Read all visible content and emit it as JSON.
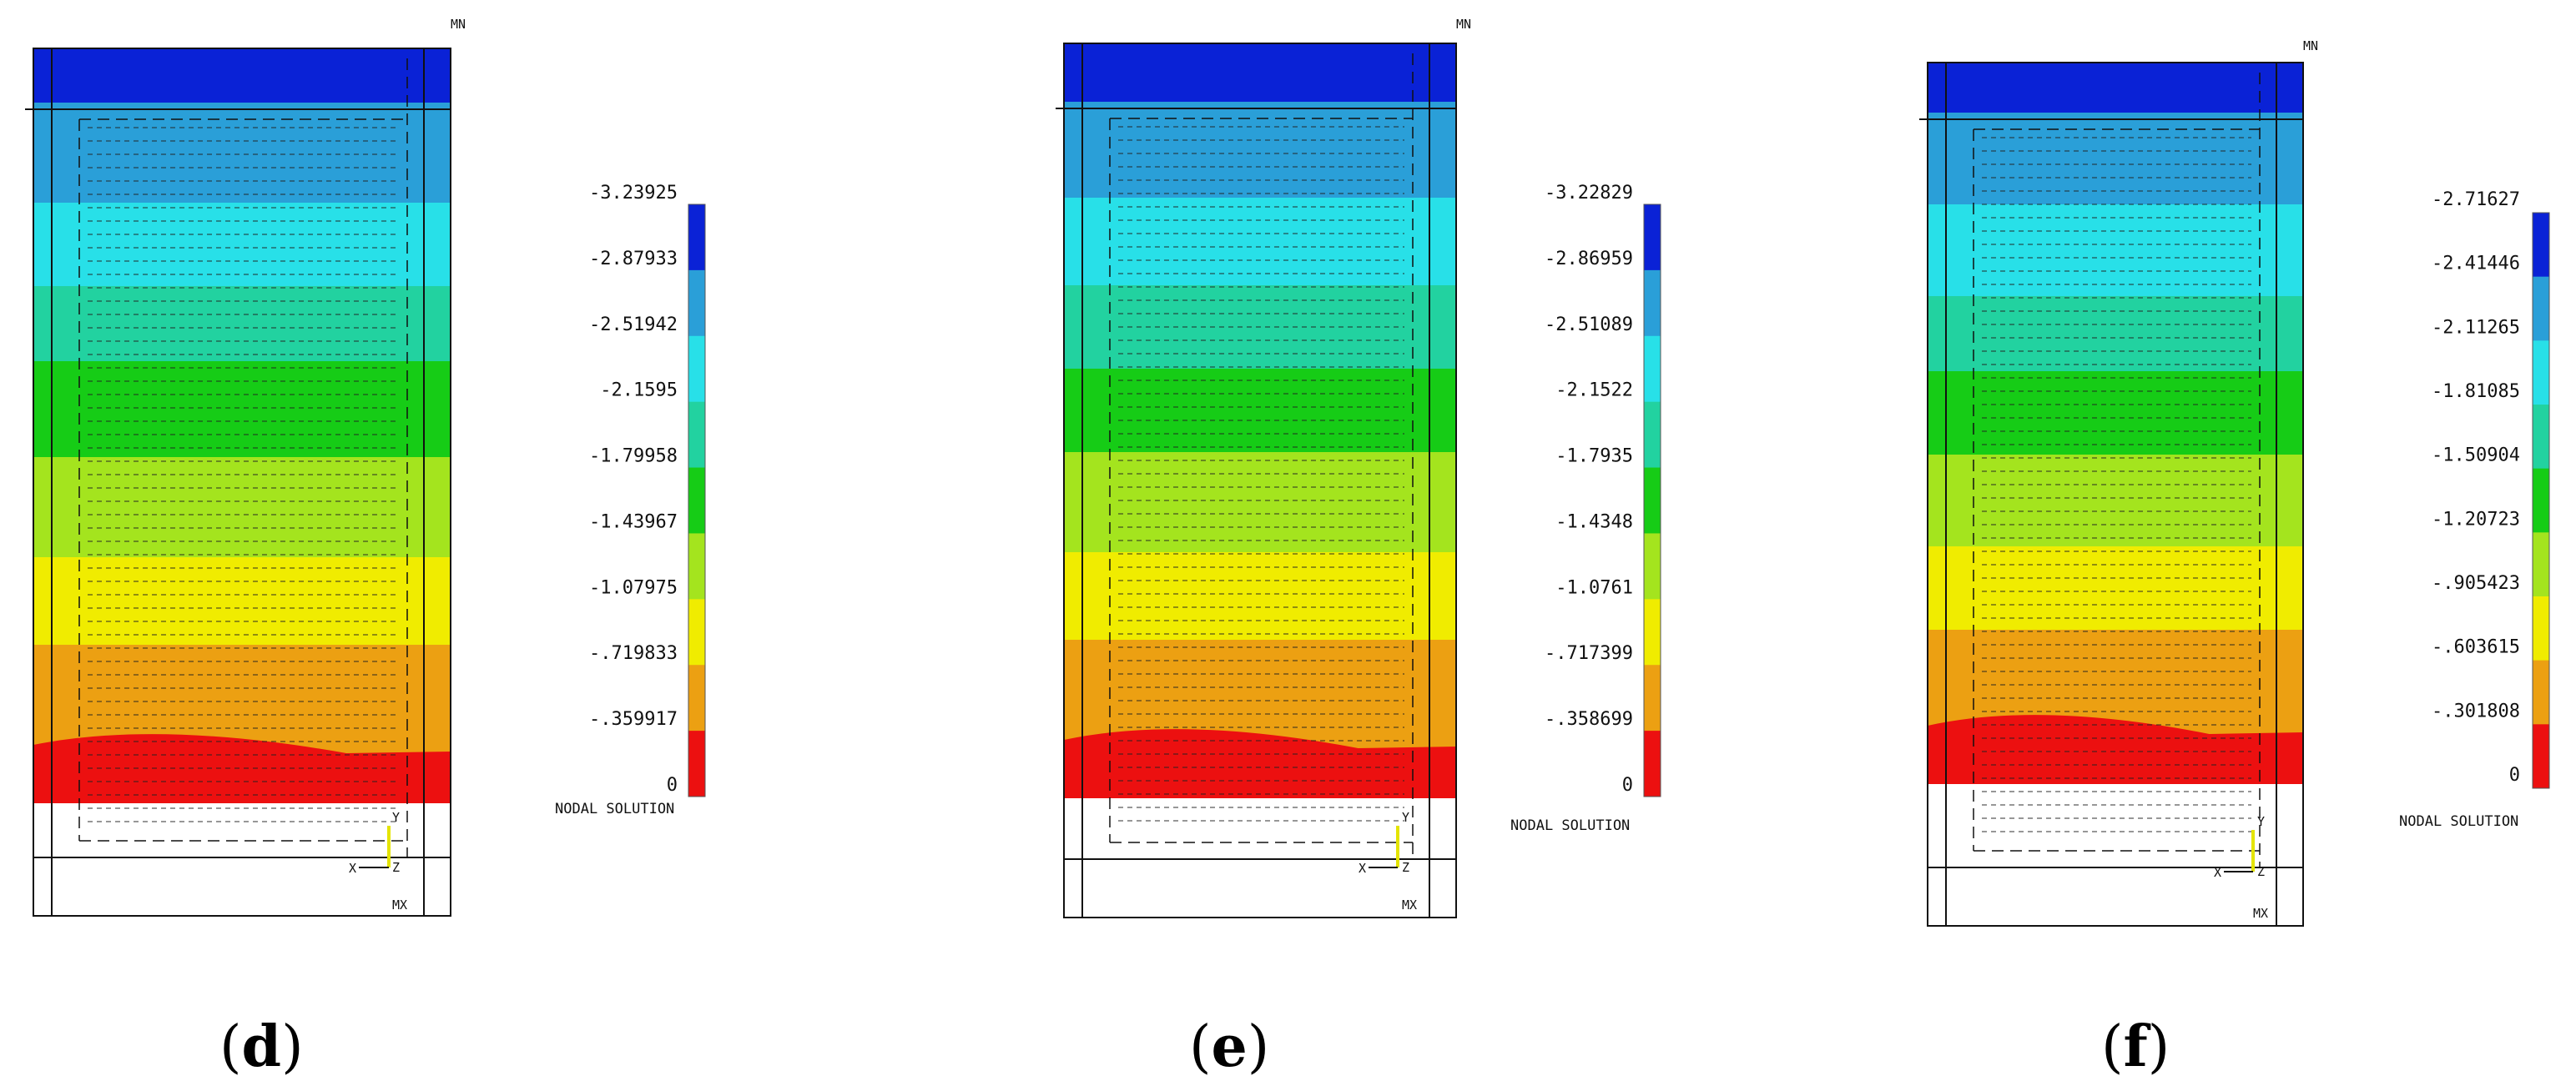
{
  "colors": {
    "bands_top_to_bottom": [
      "#0a22d6",
      "#2a9fd8",
      "#28e0e8",
      "#22d2a0",
      "#16cc16",
      "#a4e41e",
      "#f0ec00",
      "#eca012",
      "#ec1010"
    ]
  },
  "legend_title": "NODAL SOLUTION",
  "panels": [
    {
      "caption_open": "(",
      "caption_letter": "d",
      "caption_close": ")",
      "max_marker": "MX",
      "min_marker": "MN",
      "axis_y": "Y",
      "axis_x": "X",
      "axis_z": "Z",
      "legend_values": [
        "-3.23925",
        "-2.87933",
        "-2.51942",
        "-2.1595",
        "-1.79958",
        "-1.43967",
        "-1.07975",
        "-.719833",
        "-.359917",
        "0"
      ]
    },
    {
      "caption_open": "(",
      "caption_letter": "e",
      "caption_close": ")",
      "max_marker": "MX",
      "min_marker": "MN",
      "axis_y": "Y",
      "axis_x": "X",
      "axis_z": "Z",
      "legend_values": [
        "-3.22829",
        "-2.86959",
        "-2.51089",
        "-2.1522",
        "-1.7935",
        "-1.4348",
        "-1.0761",
        "-.717399",
        "-.358699",
        "0"
      ]
    },
    {
      "caption_open": "(",
      "caption_letter": "f",
      "caption_close": ")",
      "max_marker": "MX",
      "min_marker": "MN",
      "axis_y": "Y",
      "axis_x": "X",
      "axis_z": "Z",
      "legend_values": [
        "-2.71627",
        "-2.41446",
        "-2.11265",
        "-1.81085",
        "-1.50904",
        "-1.20723",
        "-.905423",
        "-.603615",
        "-.301808",
        "0"
      ]
    }
  ]
}
